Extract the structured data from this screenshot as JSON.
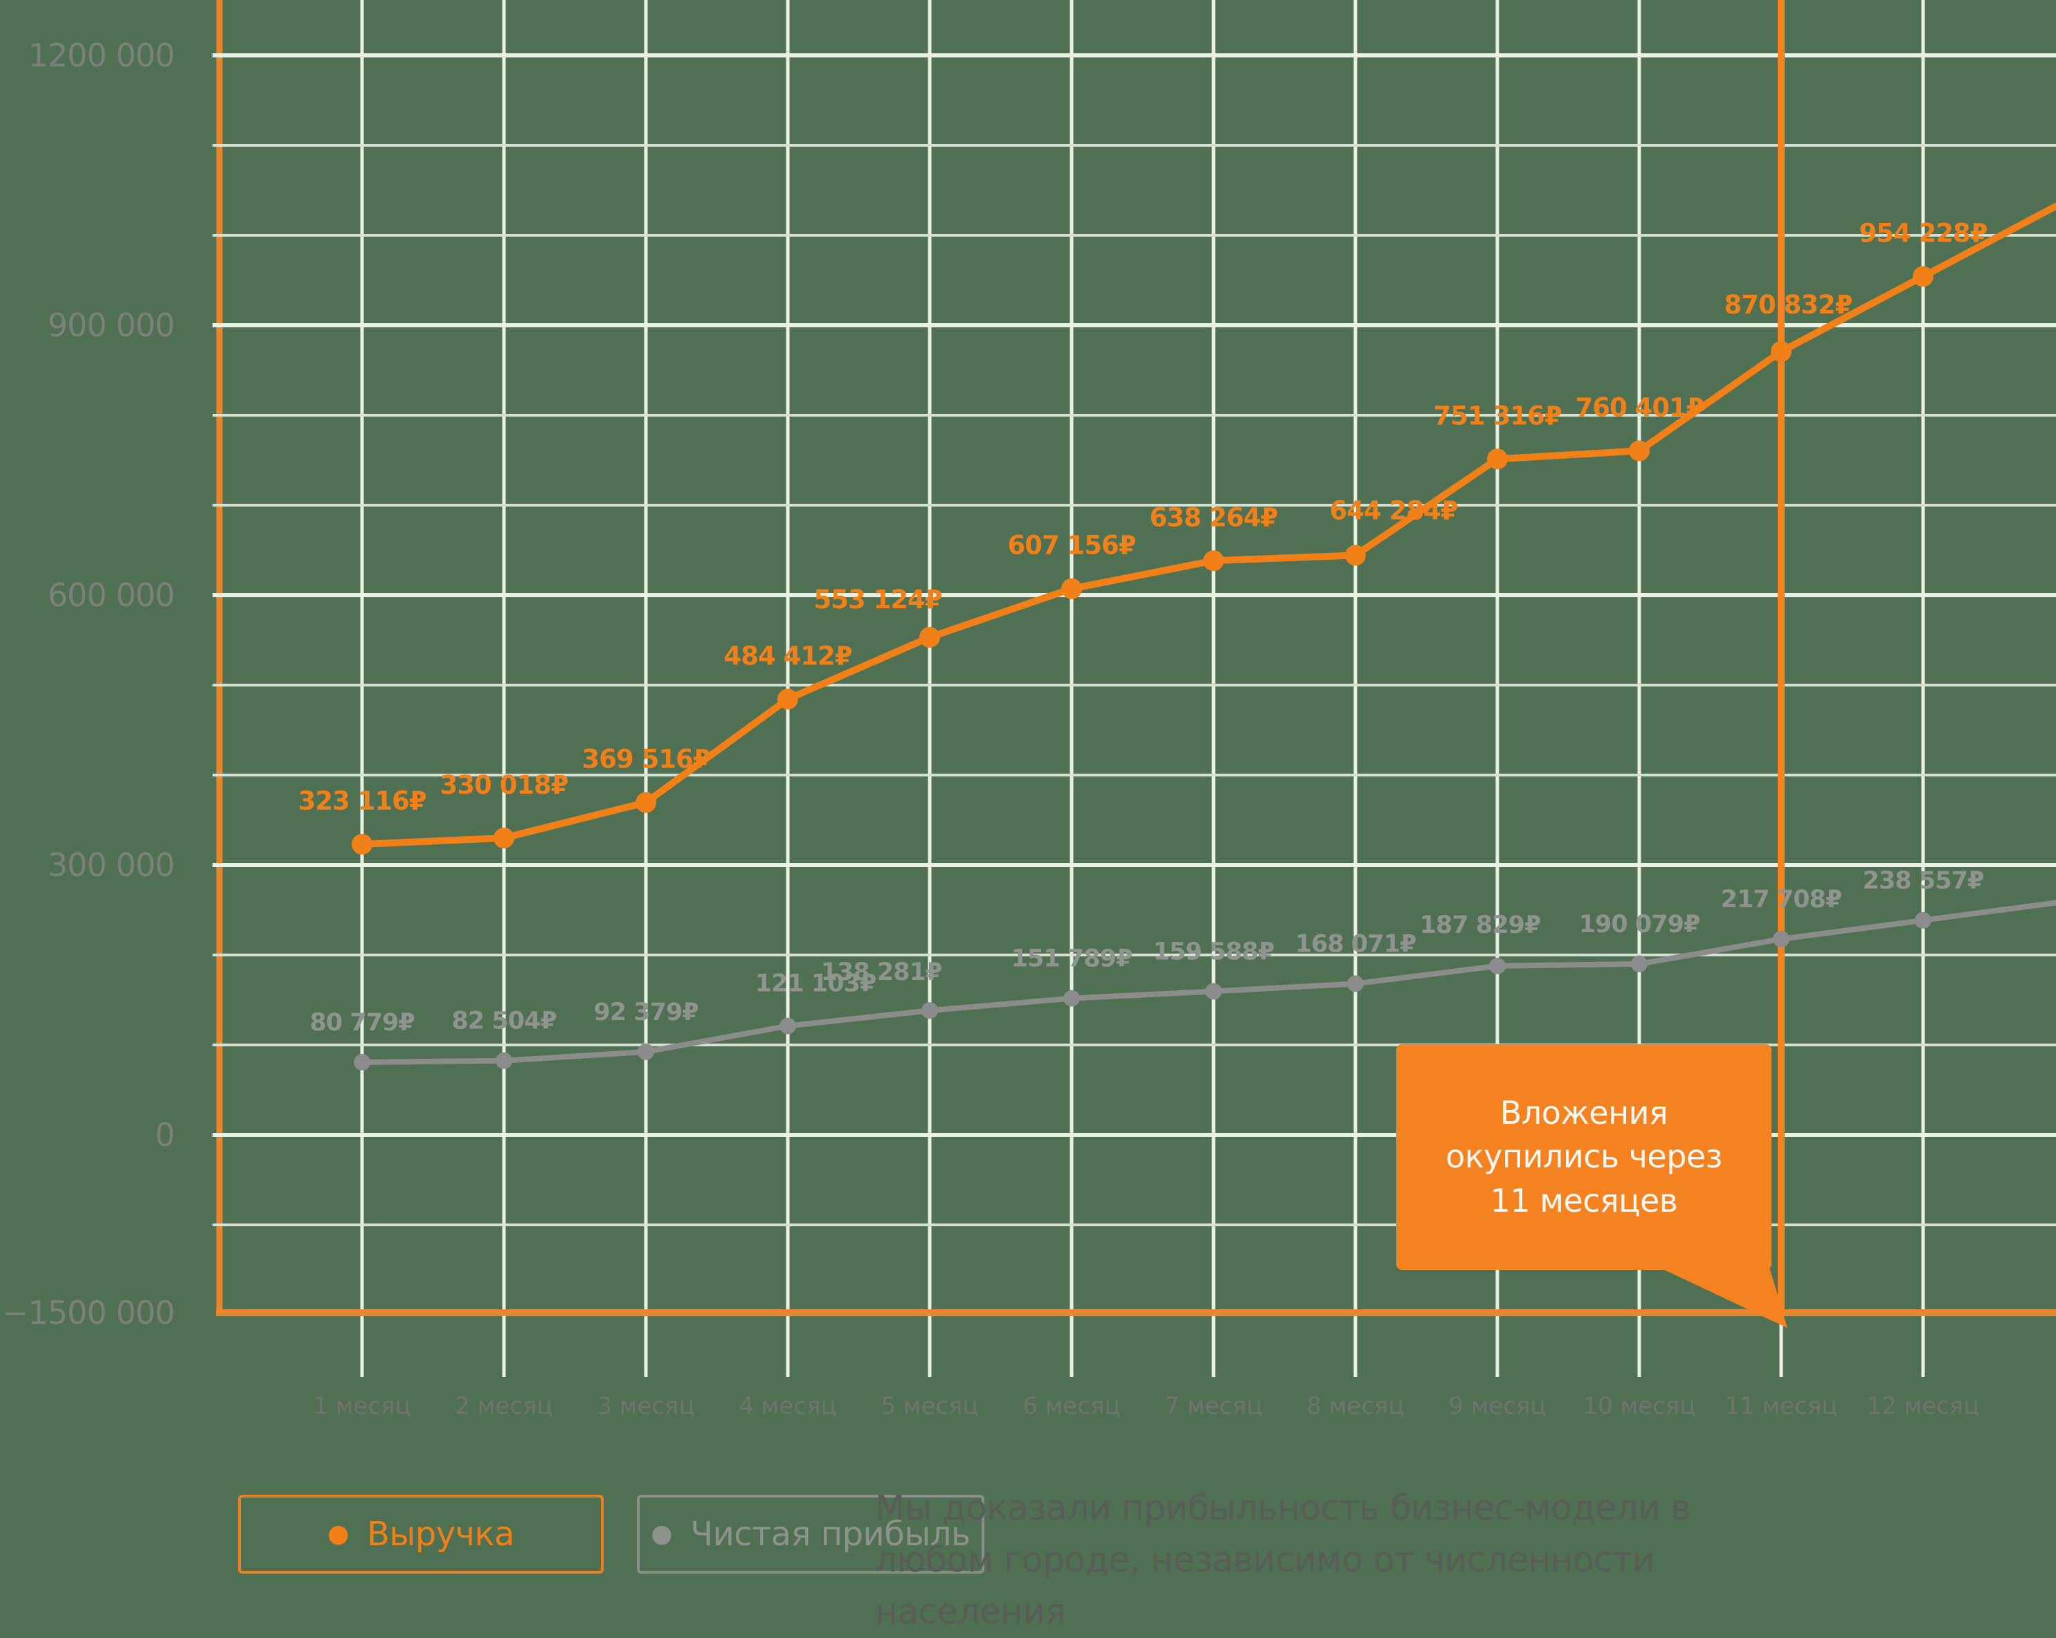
{
  "chart_data": {
    "type": "line",
    "x_categories": [
      "1 месяц",
      "2 месяц",
      "3 месяц",
      "4 месяц",
      "5 месяц",
      "6 месяц",
      "7 месяц",
      "8 месяц",
      "9 месяц",
      "10 месяц",
      "11 месяц",
      "12 месяц"
    ],
    "series": [
      {
        "name": "Выручка",
        "color": "#f18018",
        "values": [
          323116,
          330018,
          369516,
          484412,
          553124,
          607156,
          638264,
          644284,
          751316,
          760401,
          870832,
          954228
        ]
      },
      {
        "name": "Чистая прибыль",
        "color": "#8c8c8c",
        "values": [
          80779,
          82504,
          92379,
          121103,
          138281,
          151789,
          159588,
          168071,
          187829,
          190079,
          217708,
          238557
        ]
      }
    ],
    "value_suffix": "₽",
    "y_axis": {
      "tick_values": [
        1200000,
        900000,
        600000,
        300000,
        0
      ],
      "tick_labels": [
        "1200 000",
        "900 000",
        "600 000",
        "300 000",
        "0"
      ],
      "bottom_label": "−1500 000",
      "minor_grid_step": 100000
    },
    "grid": "on",
    "annotation": {
      "text": "Вложения окупились через 11 месяцев",
      "at_month": 11
    },
    "legend_position": "bottom-left"
  },
  "callout": {
    "text": "Вложения\nокупились через\n11 месяцев"
  },
  "legend": [
    {
      "label": "Выручка"
    },
    {
      "label": "Чистая прибыль"
    }
  ],
  "footnote": "Мы доказали прибыльность бизнес-модели в любом городе, независимо от численности населения",
  "colors": {
    "background": "#4f7052",
    "grid_major": "#e9f1e5",
    "grid_minor": "#d7e1d3",
    "axis_orange": "#e88730",
    "marker_line": "#f58220",
    "revenue": "#f18018",
    "revenue_label": "#f18018",
    "profit": "#8c8c8c",
    "profit_label": "#8f948e",
    "callout_bg": "#f58220",
    "callout_text": "#fdf8f1"
  }
}
